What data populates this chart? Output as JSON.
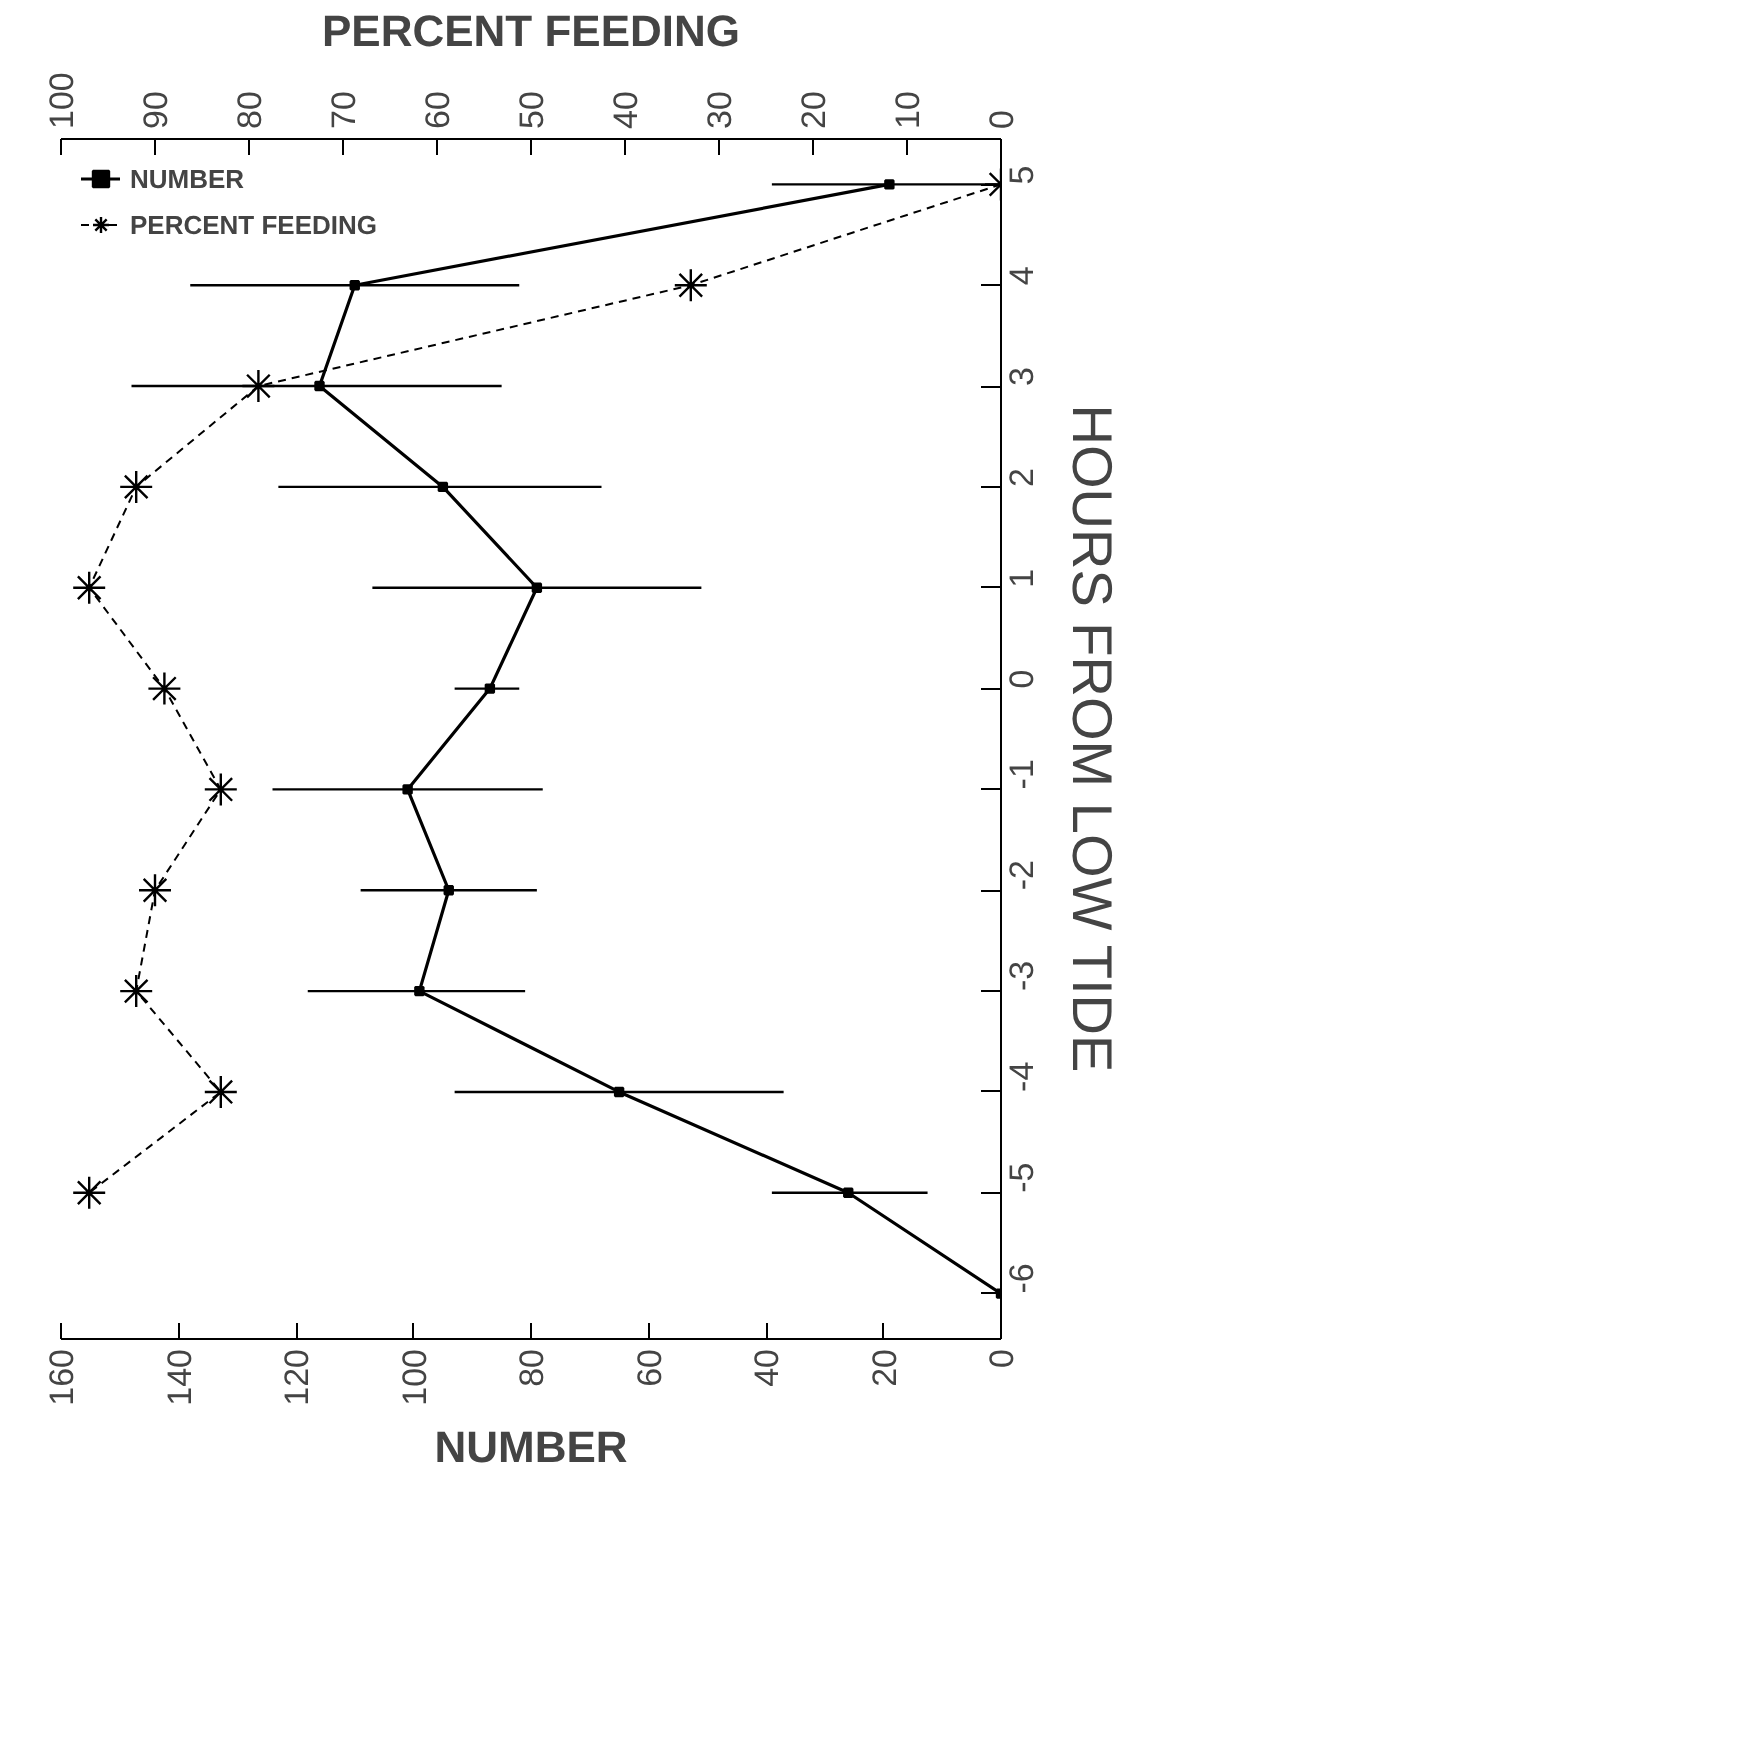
{
  "chart_data": {
    "type": "line",
    "orientation": "horizontal",
    "xlabel": "NUMBER",
    "x2label": "PERCENT FEEDING",
    "ylabel": "HOURS FROM LOW TIDE",
    "categories": [
      "5",
      "4",
      "3",
      "2",
      "1",
      "0",
      "-1",
      "-2",
      "-3",
      "-4",
      "-5",
      "-6"
    ],
    "xlim": [
      160,
      0
    ],
    "xticks": [
      160,
      140,
      120,
      100,
      80,
      60,
      40,
      20,
      0
    ],
    "x2lim": [
      100,
      0
    ],
    "x2ticks": [
      100,
      90,
      80,
      70,
      60,
      50,
      40,
      30,
      20,
      10,
      0
    ],
    "series": [
      {
        "name": "NUMBER",
        "color": "#000000",
        "marker": "square",
        "line_style": "solid",
        "values": [
          19,
          110,
          116,
          95,
          79,
          87,
          101,
          94,
          99,
          65,
          26,
          0
        ],
        "errors": [
          [
            0,
            39
          ],
          [
            82,
            138
          ],
          [
            85,
            148
          ],
          [
            68,
            123
          ],
          [
            51,
            107
          ],
          [
            82,
            93
          ],
          [
            78,
            124
          ],
          [
            79,
            109
          ],
          [
            81,
            118
          ],
          [
            37,
            93
          ],
          [
            12.5,
            39
          ],
          null
        ]
      },
      {
        "name": "PERCENT FEEDING",
        "color": "#000000",
        "axis": "x2",
        "marker": "cross",
        "line_style": "dashed",
        "values": [
          0,
          33,
          79,
          92,
          97,
          89,
          83,
          90,
          92,
          83,
          97,
          null
        ]
      }
    ],
    "grid": false,
    "legend": "top left"
  }
}
